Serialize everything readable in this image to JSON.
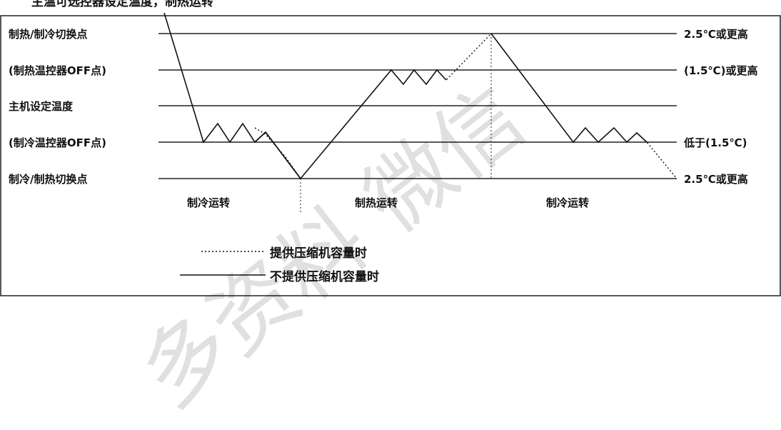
{
  "header_text": "主温可选控器设定温度，制热运转",
  "left_labels": {
    "row1": "制热/制冷切换点",
    "row2": "(制热温控器OFF点)",
    "row3": "主机设定温度",
    "row4": "(制冷温控器OFF点)",
    "row5": "制冷/制热切换点"
  },
  "right_labels": {
    "row1": "2.5℃或更高",
    "row2": "(1.5℃)或更高",
    "row4": "低于(1.5℃)",
    "row5": "2.5℃或更高"
  },
  "phases": {
    "cool1": "制冷运转",
    "heat": "制热运转",
    "cool2": "制冷运转"
  },
  "legend": {
    "dotted": "提供压缩机容量时",
    "solid": "不提供压缩机容量时"
  },
  "watermark": "多资料 微信"
}
